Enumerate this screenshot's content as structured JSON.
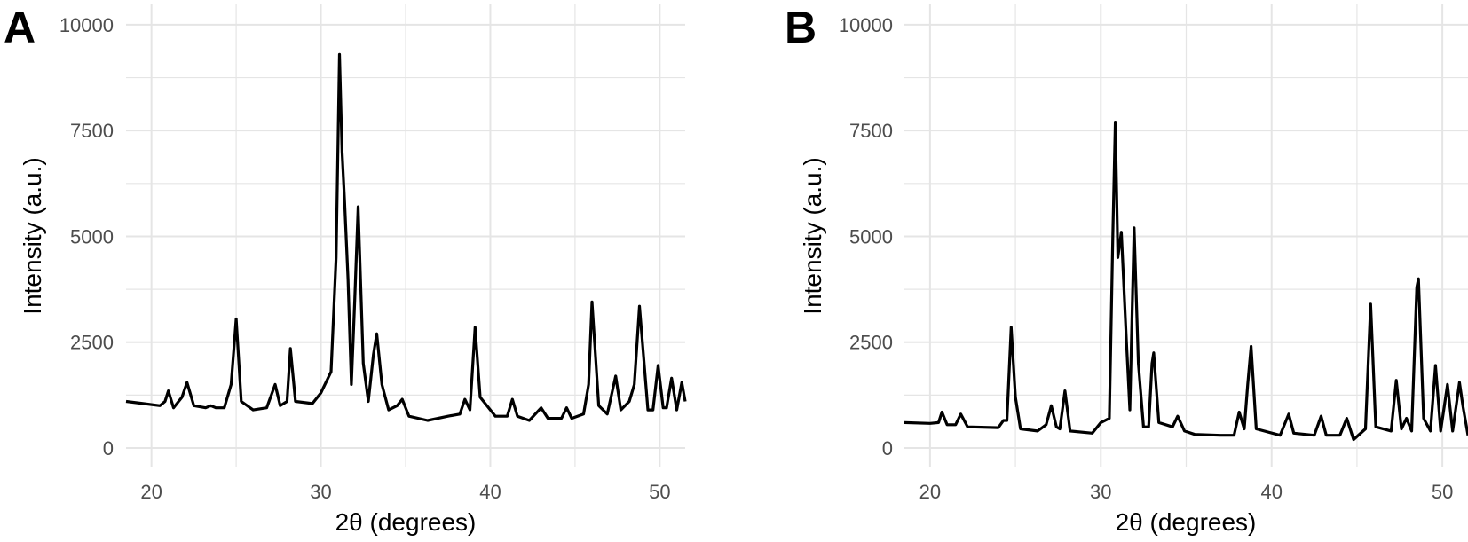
{
  "chart_data": [
    {
      "type": "line",
      "panel_label": "A",
      "xlabel": "2θ (degrees)",
      "ylabel": "Intensity (a.u.)",
      "xlim": [
        18.5,
        51.5
      ],
      "ylim": [
        -440,
        10480
      ],
      "x_ticks": [
        20,
        30,
        40,
        50
      ],
      "y_ticks": [
        0,
        2500,
        5000,
        7500,
        10000
      ],
      "x_tick_labels": [
        "20",
        "30",
        "40",
        "50"
      ],
      "y_tick_labels": [
        "0",
        "2500",
        "5000",
        "7500",
        "10000"
      ],
      "grid": true,
      "line_color": "#000000",
      "grid_color": "#e5e5e5",
      "x": [
        18.5,
        19.5,
        20.5,
        20.8,
        21.0,
        21.3,
        21.8,
        22.1,
        22.5,
        23.2,
        23.5,
        23.8,
        24.3,
        24.7,
        25.0,
        25.3,
        26.0,
        26.8,
        27.3,
        27.6,
        28.0,
        28.2,
        28.5,
        29.5,
        30.0,
        30.6,
        30.9,
        31.1,
        31.25,
        31.4,
        31.6,
        31.8,
        32.0,
        32.2,
        32.5,
        32.8,
        33.1,
        33.3,
        33.6,
        34.0,
        34.5,
        34.8,
        35.2,
        36.3,
        37.5,
        38.2,
        38.5,
        38.8,
        39.1,
        39.4,
        39.8,
        40.3,
        41.0,
        41.3,
        41.6,
        42.3,
        43.0,
        43.4,
        44.2,
        44.5,
        44.8,
        45.5,
        45.8,
        46.0,
        46.4,
        46.9,
        47.4,
        47.7,
        48.2,
        48.5,
        48.8,
        49.3,
        49.6,
        49.9,
        50.2,
        50.4,
        50.7,
        51.0,
        51.3,
        51.5
      ],
      "y": [
        1100,
        1050,
        1000,
        1100,
        1350,
        950,
        1200,
        1550,
        1000,
        950,
        1000,
        950,
        950,
        1500,
        3050,
        1100,
        900,
        950,
        1500,
        1000,
        1100,
        2350,
        1100,
        1050,
        1300,
        1800,
        4500,
        9300,
        7000,
        5800,
        4000,
        1500,
        3500,
        5700,
        2000,
        1100,
        2200,
        2700,
        1500,
        900,
        1000,
        1150,
        750,
        650,
        750,
        800,
        1150,
        900,
        2850,
        1200,
        1000,
        750,
        750,
        1150,
        750,
        650,
        950,
        700,
        700,
        950,
        700,
        800,
        1500,
        3450,
        1000,
        800,
        1700,
        900,
        1100,
        1500,
        3350,
        900,
        900,
        1950,
        950,
        950,
        1650,
        900,
        1550,
        1100
      ]
    },
    {
      "type": "line",
      "panel_label": "B",
      "xlabel": "2θ (degrees)",
      "ylabel": "Intensity (a.u.)",
      "xlim": [
        18.5,
        51.5
      ],
      "ylim": [
        -440,
        10480
      ],
      "x_ticks": [
        20,
        30,
        40,
        50
      ],
      "y_ticks": [
        0,
        2500,
        5000,
        7500,
        10000
      ],
      "x_tick_labels": [
        "20",
        "30",
        "40",
        "50"
      ],
      "y_tick_labels": [
        "0",
        "2500",
        "5000",
        "7500",
        "10000"
      ],
      "grid": true,
      "line_color": "#000000",
      "grid_color": "#e5e5e5",
      "x": [
        18.5,
        20.0,
        20.5,
        20.7,
        21.0,
        21.5,
        21.8,
        22.2,
        24.0,
        24.3,
        24.5,
        24.75,
        25.0,
        25.3,
        26.3,
        26.8,
        27.1,
        27.4,
        27.6,
        27.9,
        28.2,
        29.5,
        30.0,
        30.5,
        30.7,
        30.85,
        31.0,
        31.2,
        31.5,
        31.7,
        31.95,
        32.2,
        32.5,
        32.8,
        33.0,
        33.1,
        33.4,
        34.2,
        34.5,
        34.9,
        35.5,
        37.0,
        37.8,
        38.1,
        38.4,
        38.6,
        38.8,
        39.1,
        40.5,
        41.0,
        41.3,
        42.5,
        42.9,
        43.2,
        44.0,
        44.4,
        44.8,
        45.5,
        45.8,
        46.1,
        47.0,
        47.3,
        47.6,
        47.9,
        48.2,
        48.5,
        48.6,
        48.9,
        49.3,
        49.6,
        49.9,
        50.3,
        50.6,
        51.0,
        51.2,
        51.5
      ],
      "y": [
        600,
        580,
        600,
        850,
        550,
        550,
        800,
        500,
        480,
        650,
        650,
        2850,
        1200,
        450,
        400,
        550,
        1000,
        500,
        450,
        1350,
        400,
        350,
        600,
        700,
        5000,
        7700,
        4500,
        5100,
        2500,
        900,
        5200,
        2000,
        500,
        500,
        2000,
        2250,
        600,
        500,
        750,
        400,
        320,
        300,
        300,
        850,
        450,
        1500,
        2400,
        450,
        300,
        800,
        350,
        300,
        750,
        300,
        300,
        700,
        200,
        450,
        3400,
        500,
        400,
        1600,
        450,
        700,
        400,
        3800,
        4000,
        700,
        400,
        1950,
        400,
        1500,
        400,
        1550,
        1000,
        300
      ]
    }
  ]
}
